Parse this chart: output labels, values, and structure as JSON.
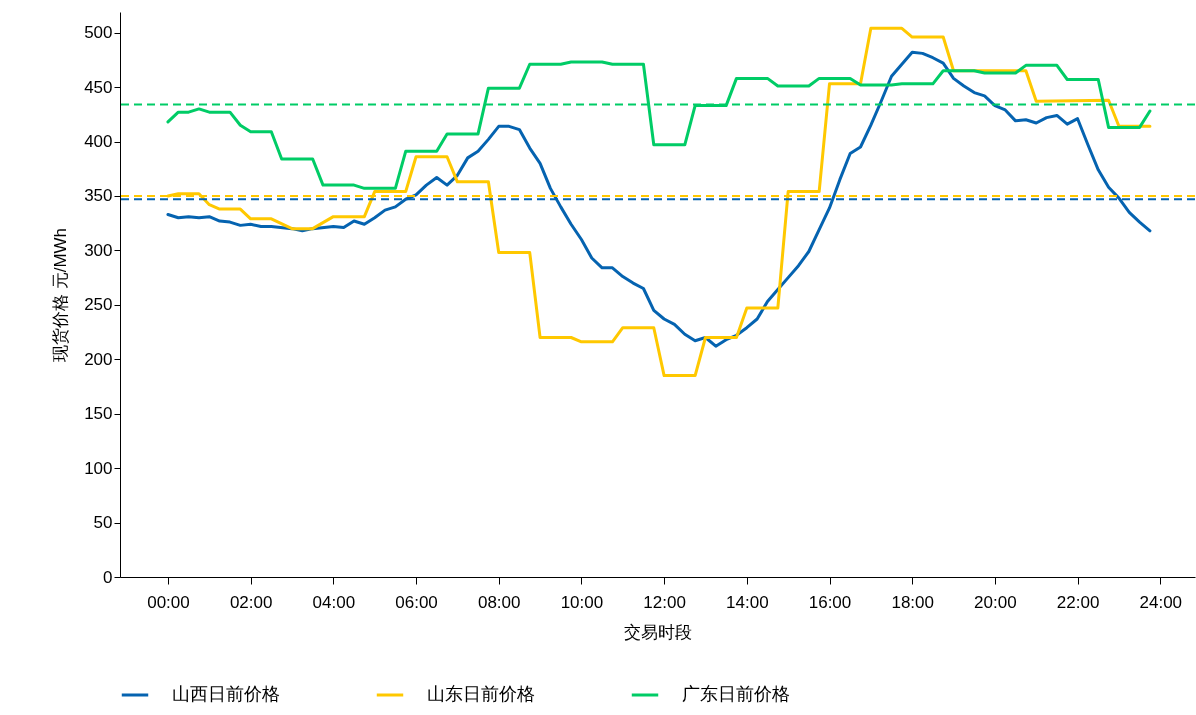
{
  "chart_data": {
    "type": "line",
    "xlabel": "交易时段",
    "ylabel": "现货价格 元/MWh",
    "xlim": [
      -1.16,
      24.84
    ],
    "ylim": [
      0,
      519
    ],
    "xticks": [
      {
        "value": 0,
        "label": "00:00"
      },
      {
        "value": 2,
        "label": "02:00"
      },
      {
        "value": 4,
        "label": "04:00"
      },
      {
        "value": 6,
        "label": "06:00"
      },
      {
        "value": 8,
        "label": "08:00"
      },
      {
        "value": 10,
        "label": "10:00"
      },
      {
        "value": 12,
        "label": "12:00"
      },
      {
        "value": 14,
        "label": "14:00"
      },
      {
        "value": 16,
        "label": "16:00"
      },
      {
        "value": 18,
        "label": "18:00"
      },
      {
        "value": 20,
        "label": "20:00"
      },
      {
        "value": 22,
        "label": "22:00"
      },
      {
        "value": 24,
        "label": "24:00"
      }
    ],
    "yticks": [
      0,
      50,
      100,
      150,
      200,
      250,
      300,
      350,
      400,
      450,
      500
    ],
    "grid": false,
    "legend": "bottom",
    "marker": "none",
    "line_style": "solid",
    "series": [
      {
        "name": "山西日前价格",
        "color": "#0563b0",
        "x": [
          0,
          0.25,
          0.5,
          0.75,
          1,
          1.25,
          1.5,
          1.75,
          2,
          2.25,
          2.5,
          3,
          3.25,
          3.5,
          4,
          4.25,
          4.5,
          4.75,
          5,
          5.25,
          5.5,
          5.75,
          6,
          6.25,
          6.5,
          6.75,
          7,
          7.25,
          7.5,
          7.75,
          8,
          8.25,
          8.5,
          8.75,
          9,
          9.25,
          9.5,
          9.75,
          10,
          10.25,
          10.5,
          10.75,
          11,
          11.25,
          11.5,
          11.75,
          12,
          12.25,
          12.5,
          12.75,
          13,
          13.25,
          13.5,
          13.75,
          14,
          14.25,
          14.5,
          14.75,
          15,
          15.25,
          15.5,
          15.75,
          16,
          16.25,
          16.5,
          16.75,
          17,
          17.25,
          17.5,
          17.75,
          18,
          18.25,
          18.5,
          18.75,
          19,
          19.25,
          19.5,
          19.75,
          20,
          20.25,
          20.5,
          20.75,
          21,
          21.25,
          21.5,
          21.75,
          22,
          22.25,
          22.5,
          22.75,
          23,
          23.25,
          23.5,
          23.75
        ],
        "values": [
          333,
          330,
          331,
          330,
          331,
          327,
          326,
          323,
          324,
          322,
          322,
          320,
          318,
          320,
          322,
          321,
          327,
          324,
          330,
          337,
          340,
          347,
          351,
          360,
          367,
          360,
          369,
          385,
          391,
          402,
          414,
          414,
          411,
          394,
          380,
          357,
          340,
          324,
          310,
          293,
          284,
          284,
          276,
          270,
          265,
          245,
          237,
          232,
          223,
          217,
          220,
          212,
          218,
          222,
          229,
          237,
          253,
          264,
          275,
          286,
          299,
          319,
          339,
          365,
          389,
          395,
          415,
          437,
          460,
          471,
          482,
          481,
          477,
          472,
          458,
          451,
          445,
          442,
          433,
          429,
          419,
          420,
          417,
          422,
          424,
          416,
          421,
          397,
          374,
          358,
          348,
          335,
          326,
          318
        ]
      },
      {
        "name": "山东日前价格",
        "color": "#ffc800",
        "x": [
          0,
          0.25,
          0.75,
          1,
          1.25,
          1.75,
          2,
          2.5,
          3,
          3.5,
          4,
          4.75,
          5,
          5.75,
          6,
          6.75,
          7,
          7.75,
          8,
          8.75,
          9,
          9.75,
          10,
          10.75,
          11,
          11.75,
          12,
          12.75,
          13,
          13.75,
          14,
          14.75,
          15,
          15.75,
          16,
          16.75,
          17,
          17.75,
          18,
          18.75,
          19,
          20.75,
          21,
          22.75,
          23,
          23.75
        ],
        "values": [
          350,
          352,
          352,
          342,
          338,
          338,
          329,
          329,
          320,
          320,
          331,
          331,
          354,
          354,
          386,
          386,
          363,
          363,
          298,
          298,
          220,
          220,
          216,
          216,
          229,
          229,
          185,
          185,
          220,
          220,
          247,
          247,
          354,
          354,
          453,
          453,
          504,
          504,
          496,
          496,
          465,
          465,
          437,
          438,
          414,
          414
        ]
      },
      {
        "name": "广东日前价格",
        "color": "#00cc66",
        "x": [
          0,
          0.25,
          0.5,
          0.75,
          1,
          1.5,
          1.75,
          2,
          2.5,
          2.75,
          3.5,
          3.75,
          4.5,
          4.75,
          5.5,
          5.75,
          6.5,
          6.75,
          7.5,
          7.75,
          8.5,
          8.75,
          9.5,
          9.75,
          10.5,
          10.75,
          11.5,
          11.75,
          12.5,
          12.75,
          13.5,
          13.75,
          14.5,
          14.75,
          15.5,
          15.75,
          16.5,
          16.75,
          17.5,
          17.75,
          18.5,
          18.75,
          19.5,
          19.75,
          20.5,
          20.75,
          21.5,
          21.75,
          22.5,
          22.75,
          23.5,
          23.75
        ],
        "values": [
          418,
          427,
          427,
          430,
          427,
          427,
          415,
          409,
          409,
          384,
          384,
          360,
          360,
          357,
          357,
          391,
          391,
          407,
          407,
          449,
          449,
          471,
          471,
          473,
          473,
          471,
          471,
          397,
          397,
          433,
          433,
          458,
          458,
          451,
          451,
          458,
          458,
          452,
          452,
          453,
          453,
          465,
          465,
          463,
          463,
          470,
          470,
          457,
          457,
          413,
          413,
          428
        ]
      }
    ],
    "ref_lines": [
      {
        "axis": "y",
        "value": 347,
        "color": "#0563b0",
        "line_style": "dashed"
      },
      {
        "axis": "y",
        "value": 350,
        "color": "#ffc800",
        "line_style": "dashed"
      },
      {
        "axis": "y",
        "value": 434,
        "color": "#00cc66",
        "line_style": "dashed"
      }
    ]
  }
}
